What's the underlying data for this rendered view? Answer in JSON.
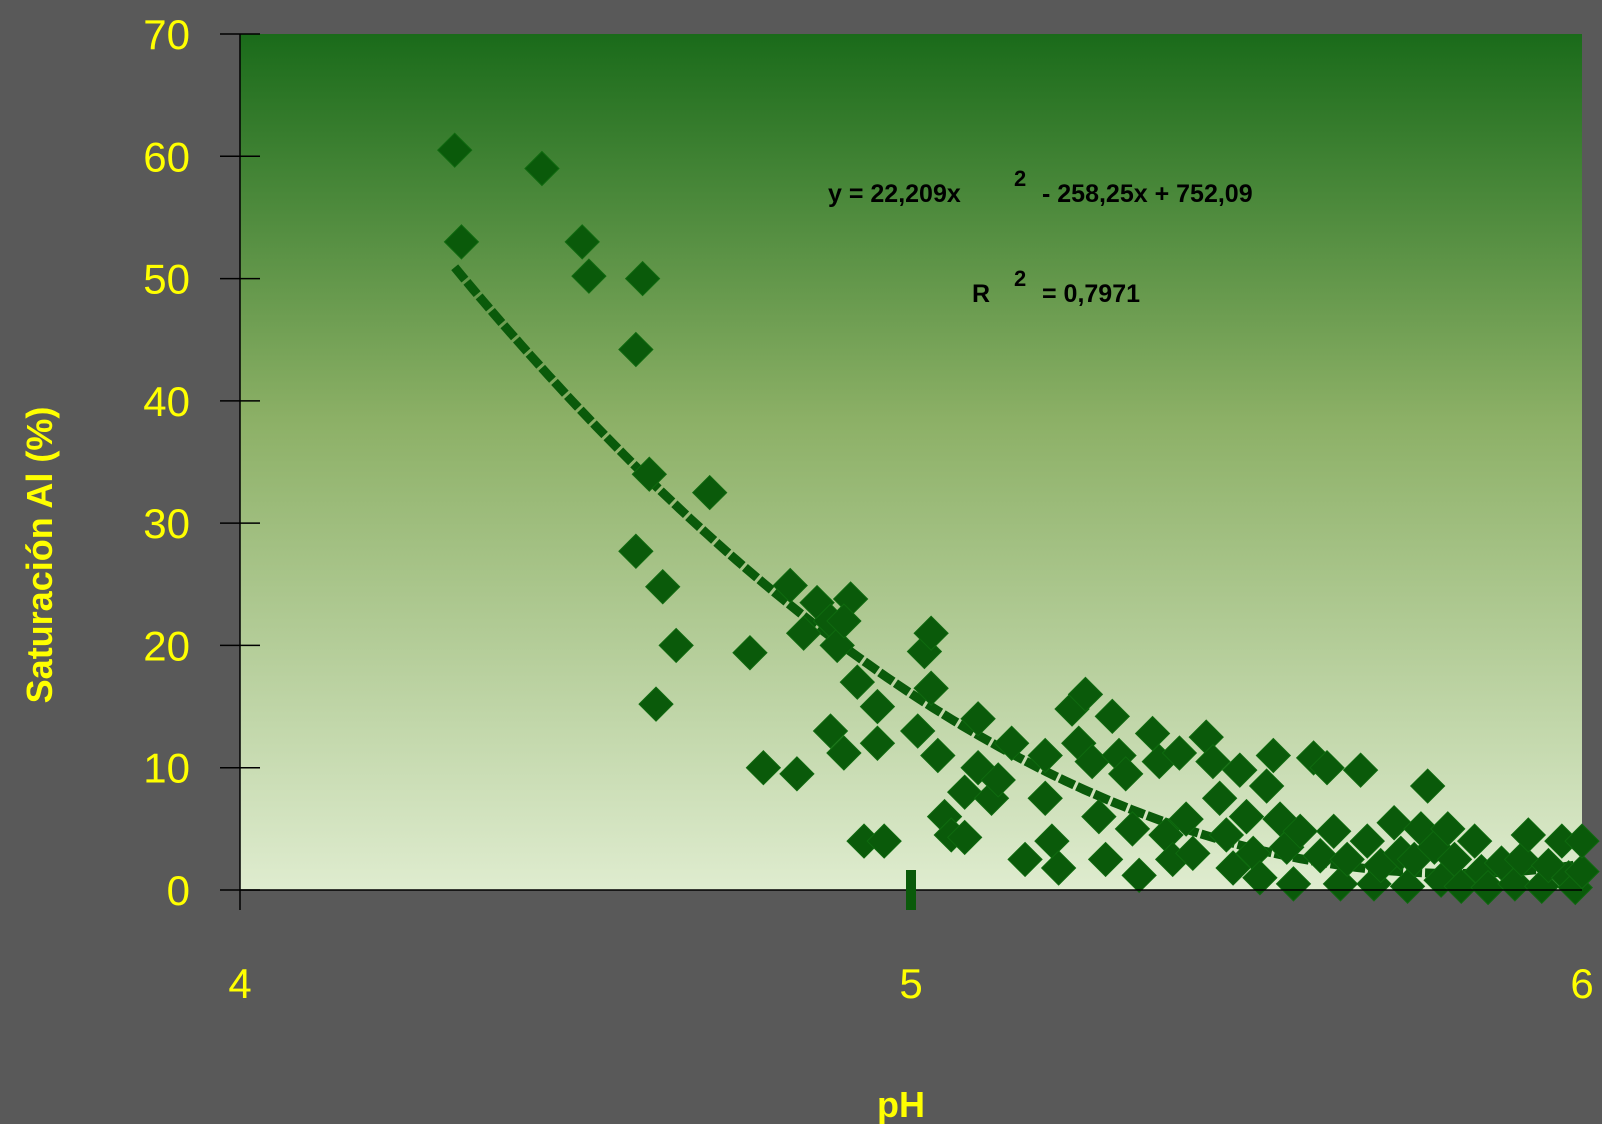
{
  "colors": {
    "background": "#595959",
    "plot_top": "#1a6b1a",
    "plot_mid": "#8cb066",
    "plot_bottom": "#dfeccf",
    "marker": "#0a5a0a",
    "trendline": "#0a5a0a",
    "text_yellow": "#ffff00",
    "axis": "#000000"
  },
  "chart_data": {
    "type": "scatter",
    "xlabel": "pH",
    "ylabel": "Saturación Al (%)",
    "xlim": [
      4,
      6
    ],
    "ylim": [
      0,
      70
    ],
    "xticks": [
      "4",
      "5",
      "6"
    ],
    "yticks": [
      "0",
      "10",
      "20",
      "30",
      "40",
      "50",
      "60",
      "70"
    ],
    "grid": false,
    "marker": "diamond",
    "trendline": {
      "type": "polynomial",
      "order": 2,
      "coefficients": [
        22.209,
        -258.25,
        752.09
      ],
      "x_range": [
        4.32,
        6.0
      ],
      "equation_parts": [
        "y = 22,209x",
        "2",
        " - 258,25x + 752,09"
      ],
      "r2_parts": [
        "R",
        "2",
        " = 0,7971"
      ]
    },
    "points": [
      [
        4.32,
        60.5
      ],
      [
        4.33,
        53
      ],
      [
        4.45,
        59
      ],
      [
        4.51,
        53
      ],
      [
        4.52,
        50.2
      ],
      [
        4.6,
        50
      ],
      [
        4.59,
        44.2
      ],
      [
        4.61,
        34
      ],
      [
        4.7,
        32.5
      ],
      [
        4.59,
        27.7
      ],
      [
        4.63,
        24.8
      ],
      [
        4.65,
        20
      ],
      [
        4.62,
        15.2
      ],
      [
        4.76,
        19.4
      ],
      [
        4.78,
        10
      ],
      [
        4.83,
        9.5
      ],
      [
        4.82,
        24.9
      ],
      [
        4.84,
        21
      ],
      [
        4.86,
        23.5
      ],
      [
        4.88,
        22
      ],
      [
        4.89,
        20
      ],
      [
        4.91,
        23.8
      ],
      [
        4.9,
        22
      ],
      [
        4.92,
        17
      ],
      [
        4.88,
        13
      ],
      [
        4.9,
        11.2
      ],
      [
        4.95,
        12
      ],
      [
        4.95,
        15
      ],
      [
        4.93,
        4
      ],
      [
        4.96,
        4
      ],
      [
        5.02,
        19.5
      ],
      [
        5.03,
        21
      ],
      [
        5.03,
        16.5
      ],
      [
        5.01,
        13
      ],
      [
        5.04,
        11
      ],
      [
        5.05,
        6
      ],
      [
        5.06,
        4.5
      ],
      [
        5.08,
        4.3
      ],
      [
        5.08,
        8
      ],
      [
        5.1,
        14
      ],
      [
        5.1,
        10
      ],
      [
        5.12,
        7.5
      ],
      [
        5.13,
        9
      ],
      [
        5.15,
        12
      ],
      [
        5.17,
        2.5
      ],
      [
        5.2,
        11
      ],
      [
        5.2,
        7.5
      ],
      [
        5.21,
        4
      ],
      [
        5.22,
        1.8
      ],
      [
        5.24,
        14.8
      ],
      [
        5.25,
        12
      ],
      [
        5.26,
        16
      ],
      [
        5.27,
        10.5
      ],
      [
        5.28,
        6
      ],
      [
        5.29,
        2.5
      ],
      [
        5.3,
        14.2
      ],
      [
        5.31,
        11
      ],
      [
        5.32,
        9.5
      ],
      [
        5.33,
        5
      ],
      [
        5.34,
        1.2
      ],
      [
        5.36,
        12.8
      ],
      [
        5.37,
        10.5
      ],
      [
        5.38,
        4.5
      ],
      [
        5.39,
        2.5
      ],
      [
        5.4,
        11.2
      ],
      [
        5.41,
        5.8
      ],
      [
        5.42,
        3
      ],
      [
        5.44,
        12.5
      ],
      [
        5.45,
        10.5
      ],
      [
        5.46,
        7.5
      ],
      [
        5.47,
        4.5
      ],
      [
        5.48,
        1.8
      ],
      [
        5.49,
        9.8
      ],
      [
        5.5,
        6
      ],
      [
        5.51,
        3
      ],
      [
        5.52,
        1
      ],
      [
        5.53,
        8.5
      ],
      [
        5.54,
        11
      ],
      [
        5.55,
        5.8
      ],
      [
        5.56,
        3.5
      ],
      [
        5.57,
        0.5
      ],
      [
        5.58,
        4.8
      ],
      [
        5.6,
        10.8
      ],
      [
        5.61,
        2.8
      ],
      [
        5.62,
        10
      ],
      [
        5.63,
        4.8
      ],
      [
        5.64,
        0.5
      ],
      [
        5.65,
        2.5
      ],
      [
        5.67,
        9.8
      ],
      [
        5.68,
        4
      ],
      [
        5.69,
        0.5
      ],
      [
        5.7,
        2
      ],
      [
        5.72,
        5.5
      ],
      [
        5.73,
        3
      ],
      [
        5.74,
        0.3
      ],
      [
        5.75,
        2.5
      ],
      [
        5.76,
        5
      ],
      [
        5.77,
        8.5
      ],
      [
        5.78,
        3.5
      ],
      [
        5.79,
        0.8
      ],
      [
        5.8,
        5
      ],
      [
        5.81,
        2.5
      ],
      [
        5.82,
        0.3
      ],
      [
        5.84,
        4
      ],
      [
        5.85,
        1.5
      ],
      [
        5.86,
        0.2
      ],
      [
        5.88,
        2.2
      ],
      [
        5.9,
        0.5
      ],
      [
        5.91,
        2.5
      ],
      [
        5.92,
        4.5
      ],
      [
        5.94,
        0.3
      ],
      [
        5.95,
        2
      ],
      [
        5.97,
        4
      ],
      [
        5.98,
        1
      ],
      [
        5.99,
        0.2
      ],
      [
        6.0,
        1.5
      ],
      [
        6.0,
        4
      ]
    ]
  }
}
